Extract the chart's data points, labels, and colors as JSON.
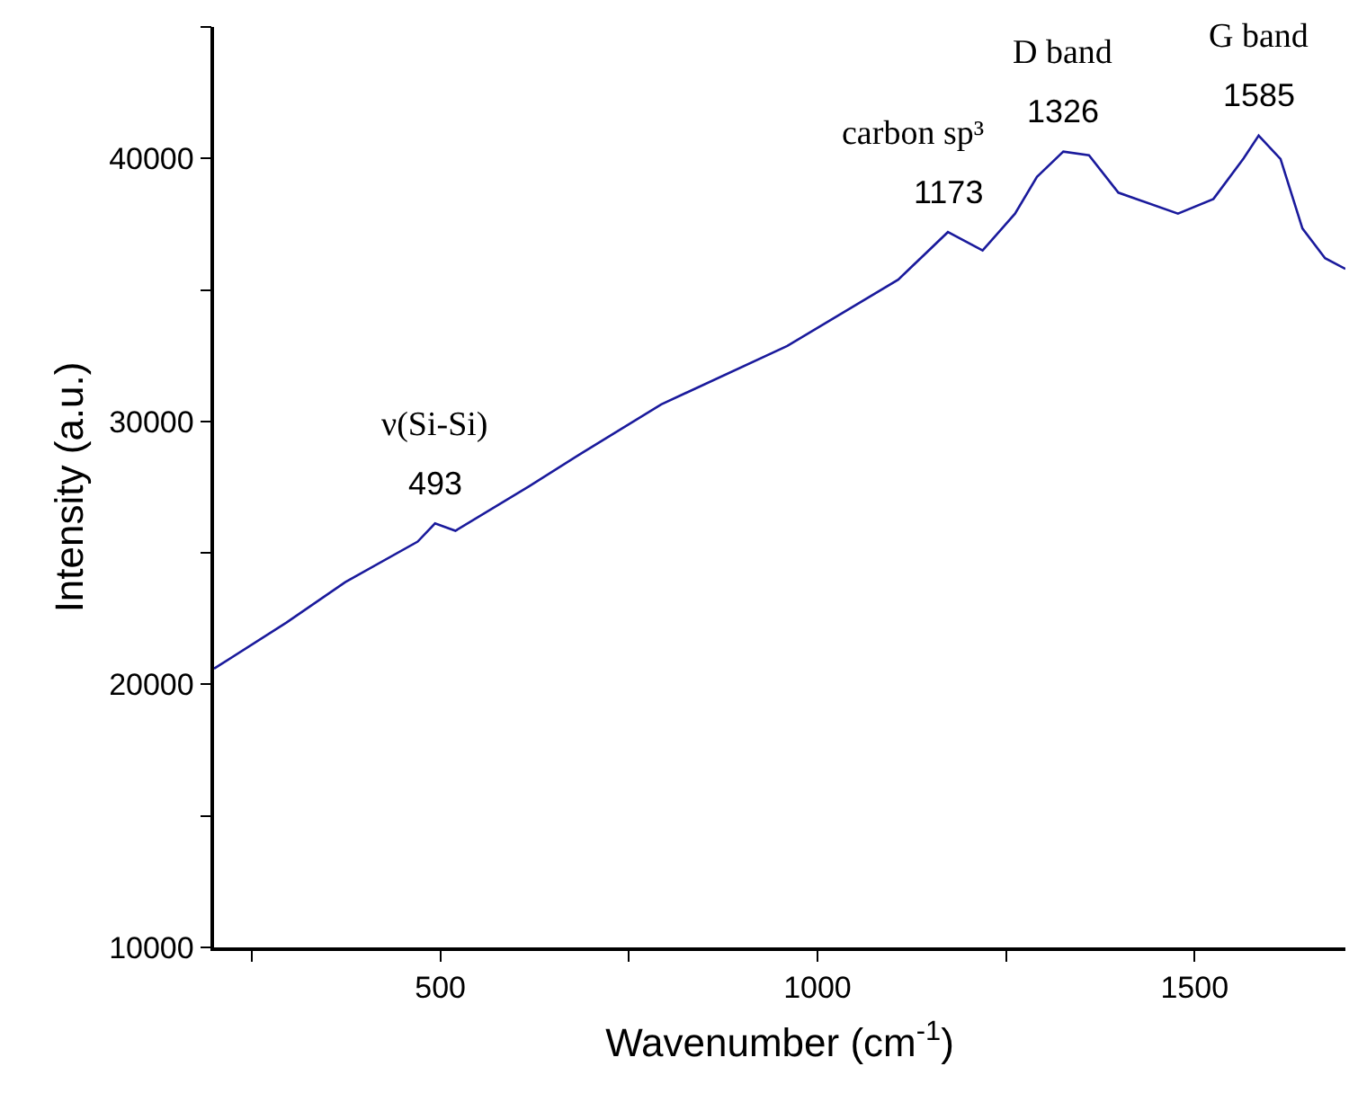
{
  "chart_data": {
    "type": "line",
    "x": [
      200,
      296,
      374,
      470,
      493,
      520,
      618,
      686,
      793,
      960,
      1107,
      1173,
      1219,
      1262,
      1291,
      1326,
      1360,
      1399,
      1478,
      1525,
      1565,
      1585,
      1614,
      1643,
      1673,
      1700
    ],
    "series": [
      {
        "color": "#1a1a9c",
        "values": [
          20600,
          22350,
          23890,
          25430,
          26120,
          25840,
          27540,
          28770,
          30650,
          32870,
          35390,
          37200,
          36500,
          37900,
          39300,
          40260,
          40120,
          38700,
          37900,
          38460,
          40000,
          40870,
          39980,
          37340,
          36210,
          35800
        ]
      }
    ],
    "xlabel": "Wavenumber (cm$^{-1}$)",
    "ylabel": "Intensity (a.u.)",
    "xlim": [
      200,
      1700
    ],
    "ylim": [
      10000,
      45000
    ],
    "xticks": [
      {
        "value": 250,
        "label": null
      },
      500,
      {
        "value": 750,
        "label": null
      },
      1000,
      {
        "value": 1250,
        "label": null
      },
      1500
    ],
    "yticks": [
      10000,
      {
        "value": 15000,
        "label": null
      },
      20000,
      {
        "value": 25000,
        "label": null
      },
      30000,
      {
        "value": 35000,
        "label": null
      },
      40000,
      {
        "value": 45000,
        "label": null
      }
    ],
    "annotations": [
      {
        "text": "ν(Si-Si)",
        "x": 493,
        "y": 26120
      },
      {
        "text": "493",
        "x": 493,
        "y": 26120
      },
      {
        "text": "carbon sp³",
        "x": 1173,
        "y": 37200
      },
      {
        "text": "1173",
        "x": 1173,
        "y": 37200
      },
      {
        "text": "D band",
        "x": 1326,
        "y": 40260
      },
      {
        "text": "1326",
        "x": 1326,
        "y": 40260
      },
      {
        "text": "G band",
        "x": 1585,
        "y": 40870
      },
      {
        "text": "1585",
        "x": 1585,
        "y": 40870
      }
    ],
    "marker": "none",
    "line_style": "solid"
  }
}
